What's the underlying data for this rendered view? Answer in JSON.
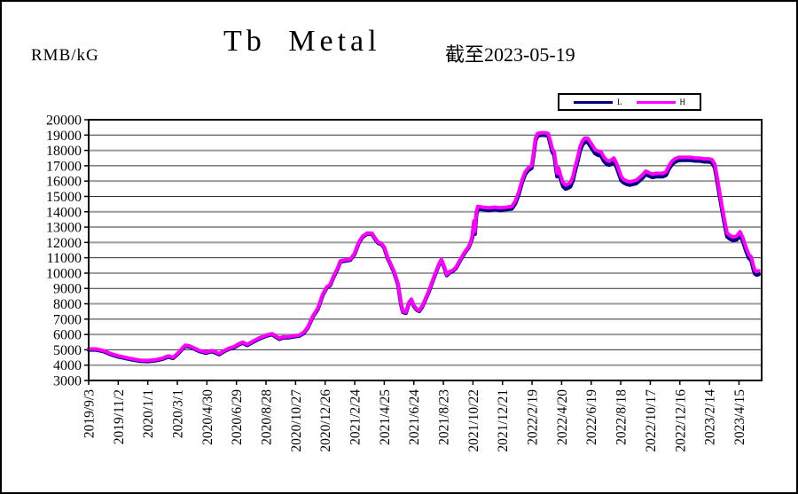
{
  "header": {
    "unit_label": "RMB/kG",
    "title": "Tb Metal",
    "as_of": "截至2023-05-19"
  },
  "legend": {
    "items": [
      {
        "label": "L",
        "color": "#000080"
      },
      {
        "label": "H",
        "color": "#FF00FF"
      }
    ]
  },
  "chart_data": {
    "type": "line",
    "title": "Tb Metal",
    "subtitle": "截至2023-05-19",
    "ylabel": "RMB/kG",
    "y_min": 3000,
    "y_max": 20000,
    "y_step": 1000,
    "grid": true,
    "legend_position": "top-right",
    "grid_colors": {
      "odd": "#333333",
      "even": "#9c9c9c"
    },
    "axis_color": "#000000",
    "x_tick_labels": [
      "2019/9/3",
      "2019/11/2",
      "2020/1/1",
      "2020/3/1",
      "2020/4/30",
      "2020/6/29",
      "2020/8/28",
      "2020/10/27",
      "2020/12/26",
      "2021/2/24",
      "2021/4/25",
      "2021/6/24",
      "2021/8/23",
      "2021/10/22",
      "2021/12/21",
      "2022/2/19",
      "2022/4/20",
      "2022/6/19",
      "2022/8/18",
      "2022/10/17",
      "2022/12/16",
      "2023/2/14",
      "2023/4/15"
    ],
    "x_tick_interval_days": 60,
    "x_axis_days_max": 1366,
    "series": [
      {
        "name": "L",
        "color": "#000080",
        "width": 4.5
      },
      {
        "name": "H",
        "color": "#FF00FF",
        "width": 4
      }
    ],
    "points_columns": [
      "day",
      "L",
      "H"
    ],
    "points": [
      [
        0,
        5000,
        5050
      ],
      [
        15,
        5000,
        5050
      ],
      [
        30,
        4900,
        4950
      ],
      [
        45,
        4700,
        4750
      ],
      [
        60,
        4550,
        4600
      ],
      [
        75,
        4450,
        4500
      ],
      [
        90,
        4350,
        4400
      ],
      [
        105,
        4270,
        4320
      ],
      [
        120,
        4250,
        4300
      ],
      [
        135,
        4300,
        4350
      ],
      [
        150,
        4400,
        4450
      ],
      [
        162,
        4550,
        4600
      ],
      [
        171,
        4450,
        4500
      ],
      [
        180,
        4700,
        4750
      ],
      [
        190,
        5050,
        5100
      ],
      [
        196,
        5250,
        5300
      ],
      [
        205,
        5200,
        5250
      ],
      [
        215,
        5050,
        5100
      ],
      [
        225,
        4900,
        4950
      ],
      [
        238,
        4800,
        4850
      ],
      [
        250,
        4900,
        4950
      ],
      [
        258,
        4800,
        4850
      ],
      [
        265,
        4700,
        4750
      ],
      [
        275,
        4900,
        4950
      ],
      [
        285,
        5050,
        5100
      ],
      [
        295,
        5150,
        5200
      ],
      [
        305,
        5350,
        5400
      ],
      [
        313,
        5450,
        5500
      ],
      [
        322,
        5300,
        5350
      ],
      [
        333,
        5500,
        5550
      ],
      [
        345,
        5700,
        5750
      ],
      [
        360,
        5900,
        5950
      ],
      [
        372,
        6000,
        6050
      ],
      [
        380,
        5850,
        5900
      ],
      [
        387,
        5700,
        5750
      ],
      [
        395,
        5800,
        5850
      ],
      [
        405,
        5800,
        5850
      ],
      [
        415,
        5850,
        5900
      ],
      [
        427,
        5900,
        5950
      ],
      [
        437,
        6100,
        6150
      ],
      [
        445,
        6450,
        6500
      ],
      [
        455,
        7150,
        7200
      ],
      [
        465,
        7650,
        7700
      ],
      [
        475,
        8550,
        8600
      ],
      [
        483,
        9050,
        9100
      ],
      [
        490,
        9200,
        9250
      ],
      [
        497,
        9750,
        9800
      ],
      [
        505,
        10250,
        10300
      ],
      [
        511,
        10750,
        10800
      ],
      [
        520,
        10800,
        10850
      ],
      [
        531,
        10850,
        10900
      ],
      [
        540,
        11250,
        11300
      ],
      [
        548,
        11950,
        12000
      ],
      [
        556,
        12350,
        12400
      ],
      [
        565,
        12550,
        12600
      ],
      [
        575,
        12550,
        12600
      ],
      [
        582,
        12200,
        12250
      ],
      [
        588,
        11950,
        12000
      ],
      [
        594,
        11900,
        11950
      ],
      [
        600,
        11650,
        11700
      ],
      [
        607,
        10950,
        11000
      ],
      [
        613,
        10550,
        10600
      ],
      [
        620,
        10050,
        10100
      ],
      [
        628,
        9250,
        9300
      ],
      [
        634,
        7950,
        8000
      ],
      [
        638,
        7450,
        7500
      ],
      [
        644,
        7400,
        7450
      ],
      [
        650,
        8050,
        8100
      ],
      [
        655,
        8250,
        8300
      ],
      [
        660,
        7850,
        7900
      ],
      [
        666,
        7600,
        7650
      ],
      [
        671,
        7520,
        7570
      ],
      [
        676,
        7750,
        7800
      ],
      [
        682,
        8150,
        8200
      ],
      [
        690,
        8750,
        8800
      ],
      [
        698,
        9450,
        9500
      ],
      [
        705,
        10050,
        10100
      ],
      [
        711,
        10550,
        10600
      ],
      [
        716,
        10850,
        10900
      ],
      [
        722,
        10350,
        10400
      ],
      [
        727,
        9850,
        9900
      ],
      [
        733,
        10050,
        10100
      ],
      [
        740,
        10150,
        10200
      ],
      [
        746,
        10350,
        10400
      ],
      [
        752,
        10700,
        10750
      ],
      [
        760,
        11150,
        11200
      ],
      [
        766,
        11450,
        11500
      ],
      [
        771,
        11650,
        11700
      ],
      [
        776,
        12050,
        12100
      ],
      [
        779,
        12350,
        12500
      ],
      [
        782,
        13250,
        13400
      ],
      [
        784,
        12550,
        12700
      ],
      [
        787,
        13850,
        14000
      ],
      [
        790,
        14200,
        14350
      ],
      [
        800,
        14150,
        14300
      ],
      [
        812,
        14100,
        14250
      ],
      [
        824,
        14150,
        14300
      ],
      [
        836,
        14100,
        14250
      ],
      [
        848,
        14150,
        14300
      ],
      [
        859,
        14200,
        14350
      ],
      [
        866,
        14550,
        14700
      ],
      [
        873,
        15150,
        15300
      ],
      [
        880,
        15950,
        16100
      ],
      [
        886,
        16450,
        16600
      ],
      [
        892,
        16700,
        16850
      ],
      [
        899,
        16850,
        17000
      ],
      [
        903,
        17650,
        17800
      ],
      [
        907,
        18650,
        18800
      ],
      [
        911,
        18950,
        19100
      ],
      [
        918,
        19000,
        19150
      ],
      [
        926,
        19000,
        19150
      ],
      [
        933,
        18950,
        19100
      ],
      [
        938,
        18300,
        18500
      ],
      [
        941,
        17900,
        18100
      ],
      [
        945,
        17700,
        17900
      ],
      [
        948,
        17000,
        17200
      ],
      [
        951,
        16300,
        16500
      ],
      [
        954,
        16650,
        16850
      ],
      [
        958,
        16150,
        16350
      ],
      [
        963,
        15650,
        15900
      ],
      [
        968,
        15500,
        15750
      ],
      [
        973,
        15550,
        15800
      ],
      [
        978,
        15650,
        15900
      ],
      [
        983,
        16050,
        16300
      ],
      [
        988,
        16750,
        17000
      ],
      [
        993,
        17350,
        17600
      ],
      [
        997,
        17950,
        18200
      ],
      [
        1002,
        18350,
        18600
      ],
      [
        1007,
        18550,
        18800
      ],
      [
        1013,
        18550,
        18800
      ],
      [
        1018,
        18300,
        18550
      ],
      [
        1023,
        18050,
        18300
      ],
      [
        1028,
        17800,
        18050
      ],
      [
        1034,
        17700,
        17950
      ],
      [
        1040,
        17650,
        17900
      ],
      [
        1046,
        17300,
        17550
      ],
      [
        1052,
        17100,
        17350
      ],
      [
        1057,
        17050,
        17300
      ],
      [
        1062,
        17150,
        17400
      ],
      [
        1066,
        17250,
        17500
      ],
      [
        1071,
        16950,
        17200
      ],
      [
        1076,
        16500,
        16750
      ],
      [
        1081,
        16050,
        16300
      ],
      [
        1086,
        15900,
        16100
      ],
      [
        1092,
        15800,
        16000
      ],
      [
        1098,
        15750,
        15950
      ],
      [
        1105,
        15800,
        16000
      ],
      [
        1111,
        15850,
        16050
      ],
      [
        1117,
        16000,
        16200
      ],
      [
        1124,
        16200,
        16400
      ],
      [
        1131,
        16450,
        16650
      ],
      [
        1137,
        16350,
        16550
      ],
      [
        1144,
        16250,
        16450
      ],
      [
        1151,
        16300,
        16500
      ],
      [
        1158,
        16300,
        16500
      ],
      [
        1165,
        16300,
        16500
      ],
      [
        1172,
        16400,
        16600
      ],
      [
        1178,
        16800,
        17000
      ],
      [
        1184,
        17100,
        17300
      ],
      [
        1190,
        17250,
        17450
      ],
      [
        1197,
        17350,
        17550
      ],
      [
        1205,
        17370,
        17550
      ],
      [
        1213,
        17370,
        17550
      ],
      [
        1222,
        17370,
        17550
      ],
      [
        1231,
        17320,
        17500
      ],
      [
        1240,
        17320,
        17500
      ],
      [
        1249,
        17270,
        17450
      ],
      [
        1258,
        17270,
        17450
      ],
      [
        1265,
        17200,
        17400
      ],
      [
        1271,
        16880,
        17100
      ],
      [
        1276,
        15980,
        16200
      ],
      [
        1281,
        14980,
        15200
      ],
      [
        1286,
        14080,
        14300
      ],
      [
        1291,
        13180,
        13400
      ],
      [
        1296,
        12380,
        12600
      ],
      [
        1302,
        12230,
        12450
      ],
      [
        1308,
        12130,
        12350
      ],
      [
        1315,
        12180,
        12400
      ],
      [
        1322,
        12480,
        12700
      ],
      [
        1328,
        12080,
        12300
      ],
      [
        1334,
        11480,
        11700
      ],
      [
        1340,
        10980,
        11200
      ],
      [
        1345,
        10830,
        11050
      ],
      [
        1349,
        10280,
        10500
      ],
      [
        1352,
        9980,
        10200
      ],
      [
        1356,
        9880,
        10100
      ],
      [
        1360,
        9930,
        10150
      ]
    ]
  }
}
